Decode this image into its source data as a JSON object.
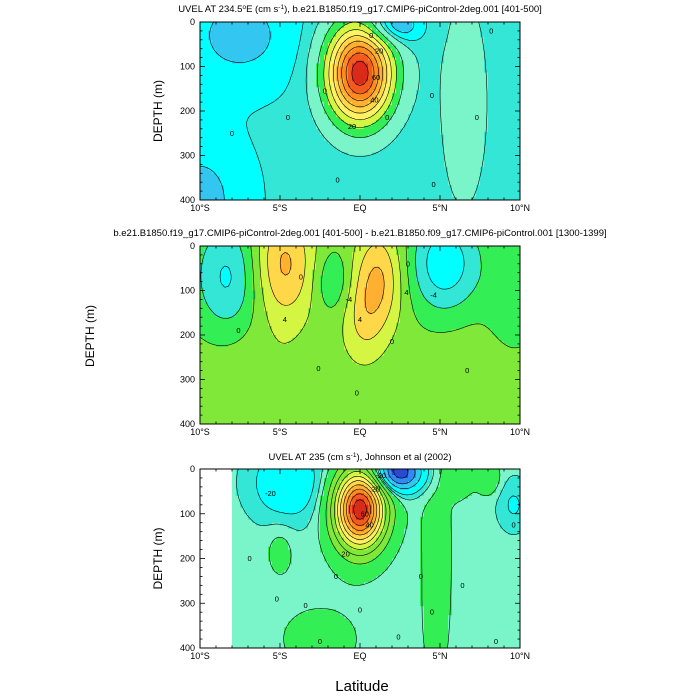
{
  "figure": {
    "shared_xlabel": "Latitude",
    "middle_ylabel": "DEPTH (m)"
  },
  "colors": {
    "levels": [
      "#2a4bd1",
      "#2f8af2",
      "#33c6f0",
      "#00ffff",
      "#33e6d6",
      "#7af5c9",
      "#33ee55",
      "#7fe838",
      "#d4f542",
      "#fff266",
      "#ffd84a",
      "#ffb030",
      "#ff8a1f",
      "#f25a1f",
      "#d92a1a"
    ],
    "contour_line": "#000000",
    "missing": "#ffffff"
  },
  "chart_data": [
    {
      "type": "heatmap",
      "name": "panel-top",
      "title": "UVEL AT 234.5°E (cm s⁻¹), b.e21.B1850.f19_g17.CMIP6-piControl-2deg.001 [401-500]",
      "title_parts": {
        "pre": "UVEL AT 234.5",
        "sup": "o",
        "mid": "E (cm s",
        "sup2": "-1",
        "post": "), b.e21.B1850.f19_g17.CMIP6-piControl-2deg.001 [401-500]"
      },
      "ylabel": "DEPTH (m)",
      "xlabel": "",
      "xlim": [
        -10,
        10
      ],
      "ylim": [
        400,
        0
      ],
      "x_ticks": [
        -10,
        -5,
        0,
        5,
        10
      ],
      "x_tick_labels": [
        "10°S",
        "5°S",
        "EQ",
        "5°N",
        "10°N"
      ],
      "y_ticks": [
        0,
        100,
        200,
        300,
        400
      ],
      "y_tick_labels": [
        "0",
        "100",
        "200",
        "300",
        "400"
      ],
      "field": {
        "base": -4,
        "blobs": [
          {
            "x": 0,
            "y": 115,
            "sx": 1.4,
            "sy": 75,
            "a": 90
          },
          {
            "x": 1.9,
            "y": 10,
            "sx": 1.2,
            "sy": 30,
            "a": -18
          },
          {
            "x": -7.5,
            "y": 30,
            "sx": 2.5,
            "sy": 80,
            "a": -8
          },
          {
            "x": 6.5,
            "y": 180,
            "sx": 1.6,
            "sy": 260,
            "a": 6
          },
          {
            "x": -10,
            "y": 400,
            "sx": 2,
            "sy": 100,
            "a": -8
          }
        ]
      },
      "levels": [
        -20,
        -15,
        -10,
        -5,
        0,
        10,
        20,
        30,
        40,
        50,
        60,
        70,
        80
      ],
      "contour_labels": [
        {
          "text": "0",
          "x": 0.7,
          "y": 30
        },
        {
          "text": "20",
          "x": 1.2,
          "y": 65
        },
        {
          "text": "40",
          "x": 0.9,
          "y": 175
        },
        {
          "text": "60",
          "x": 1.0,
          "y": 125
        },
        {
          "text": "20",
          "x": -0.5,
          "y": 235
        },
        {
          "text": "0",
          "x": -2.2,
          "y": 155
        },
        {
          "text": "0",
          "x": -4.5,
          "y": 215
        },
        {
          "text": "0",
          "x": -8.0,
          "y": 250
        },
        {
          "text": "0",
          "x": 4.5,
          "y": 165
        },
        {
          "text": "0",
          "x": 7.3,
          "y": 215
        },
        {
          "text": "0",
          "x": 8.2,
          "y": 20
        },
        {
          "text": "0",
          "x": 1.7,
          "y": 215
        },
        {
          "text": "0",
          "x": 4.6,
          "y": 365
        },
        {
          "text": "0",
          "x": -1.4,
          "y": 355
        }
      ]
    },
    {
      "type": "heatmap",
      "name": "panel-middle",
      "title": "b.e21.B1850.f19_g17.CMIP6-piControl-2deg.001 [401-500] - b.e21.B1850.f09_g17.CMIP6-piControl.001 [1300-1399]",
      "ylabel": "",
      "xlabel": "",
      "xlim": [
        -10,
        10
      ],
      "ylim": [
        400,
        0
      ],
      "x_ticks": [
        -10,
        -5,
        0,
        5,
        10
      ],
      "x_tick_labels": [
        "10°S",
        "5°S",
        "EQ",
        "5°N",
        "10°N"
      ],
      "y_ticks": [
        0,
        100,
        200,
        300,
        400
      ],
      "y_tick_labels": [
        "0",
        "100",
        "200",
        "300",
        "400"
      ],
      "field": {
        "base": 0.5,
        "blobs": [
          {
            "x": -4.8,
            "y": 40,
            "sx": 1.4,
            "sy": 90,
            "a": 6
          },
          {
            "x": -8.2,
            "y": 70,
            "sx": 1.5,
            "sy": 90,
            "a": -5
          },
          {
            "x": -1.7,
            "y": 80,
            "sx": 0.8,
            "sy": 50,
            "a": -2.8
          },
          {
            "x": 1.2,
            "y": 70,
            "sx": 1.1,
            "sy": 80,
            "a": 5.5
          },
          {
            "x": 0.2,
            "y": 170,
            "sx": 1.0,
            "sy": 70,
            "a": 3
          },
          {
            "x": 5.3,
            "y": 40,
            "sx": 1.6,
            "sy": 80,
            "a": -6
          },
          {
            "x": -6,
            "y": 350,
            "sx": 3,
            "sy": 120,
            "a": 1.5
          },
          {
            "x": 7.5,
            "y": 400,
            "sx": 3,
            "sy": 150,
            "a": 1.5
          },
          {
            "x": 9.5,
            "y": 120,
            "sx": 1.2,
            "sy": 100,
            "a": -2
          }
        ]
      },
      "levels": [
        -8,
        -6,
        -4,
        -2,
        0,
        2,
        4,
        6,
        8,
        10
      ],
      "contour_labels": [
        {
          "text": "0",
          "x": -3.7,
          "y": 70
        },
        {
          "text": "-4",
          "x": -0.7,
          "y": 120
        },
        {
          "text": "4",
          "x": -4.7,
          "y": 165
        },
        {
          "text": "0",
          "x": -7.6,
          "y": 190
        },
        {
          "text": "0",
          "x": -2.6,
          "y": 275
        },
        {
          "text": "0",
          "x": -0.2,
          "y": 330
        },
        {
          "text": "4",
          "x": 0.0,
          "y": 165
        },
        {
          "text": "4",
          "x": 2.9,
          "y": 105
        },
        {
          "text": "0",
          "x": 3.0,
          "y": 40
        },
        {
          "text": "0",
          "x": 2.0,
          "y": 215
        },
        {
          "text": "-4",
          "x": 4.6,
          "y": 110
        },
        {
          "text": "0",
          "x": 6.7,
          "y": 280
        }
      ]
    },
    {
      "type": "heatmap",
      "name": "panel-bottom",
      "title": "UVEL AT 235 (cm s⁻¹), Johnson et al (2002)",
      "title_parts": {
        "pre": "UVEL AT 235 (cm s",
        "sup": "-1",
        "post": "), Johnson et al (2002)"
      },
      "ylabel": "DEPTH (m)",
      "xlabel": "Latitude",
      "xlim": [
        -10,
        10
      ],
      "ylim": [
        400,
        0
      ],
      "x_ticks": [
        -10,
        -5,
        0,
        5,
        10
      ],
      "x_tick_labels": [
        "10°S",
        "5°S",
        "EQ",
        "5°N",
        "10°N"
      ],
      "y_ticks": [
        0,
        100,
        200,
        300,
        400
      ],
      "y_tick_labels": [
        "0",
        "100",
        "200",
        "300",
        "400"
      ],
      "data_xlim": [
        -8,
        10
      ],
      "field": {
        "base": -3,
        "blobs": [
          {
            "x": 0,
            "y": 90,
            "sx": 1.1,
            "sy": 60,
            "a": 100
          },
          {
            "x": 2.4,
            "y": 8,
            "sx": 1.1,
            "sy": 30,
            "a": -45
          },
          {
            "x": -4.5,
            "y": 30,
            "sx": 1.6,
            "sy": 60,
            "a": -15
          },
          {
            "x": 6.2,
            "y": 25,
            "sx": 0.6,
            "sy": 25,
            "a": 10
          },
          {
            "x": 8.0,
            "y": 20,
            "sx": 0.5,
            "sy": 25,
            "a": 12
          },
          {
            "x": 4.8,
            "y": 180,
            "sx": 0.9,
            "sy": 300,
            "a": 5
          },
          {
            "x": -5.0,
            "y": 180,
            "sx": 0.6,
            "sy": 40,
            "a": 6
          },
          {
            "x": -2.5,
            "y": 380,
            "sx": 3,
            "sy": 90,
            "a": 4
          },
          {
            "x": 9.6,
            "y": 80,
            "sx": 0.7,
            "sy": 40,
            "a": -8
          }
        ]
      },
      "levels": [
        -40,
        -30,
        -20,
        -10,
        -5,
        0,
        10,
        20,
        30,
        40,
        50,
        60,
        70,
        80,
        90
      ],
      "contour_labels": [
        {
          "text": "20",
          "x": 1.0,
          "y": 45
        },
        {
          "text": "40",
          "x": 0.6,
          "y": 125
        },
        {
          "text": "60",
          "x": 0.3,
          "y": 100
        },
        {
          "text": "20",
          "x": -0.9,
          "y": 190
        },
        {
          "text": "-20",
          "x": 1.3,
          "y": 15
        },
        {
          "text": "-20",
          "x": -5.6,
          "y": 55
        },
        {
          "text": "0",
          "x": -6.9,
          "y": 200
        },
        {
          "text": "0",
          "x": -5.2,
          "y": 290
        },
        {
          "text": "0",
          "x": -1.5,
          "y": 240
        },
        {
          "text": "0",
          "x": 3.8,
          "y": 240
        },
        {
          "text": "0",
          "x": 6.4,
          "y": 260
        },
        {
          "text": "0",
          "x": 9.6,
          "y": 125
        },
        {
          "text": "0",
          "x": 4.5,
          "y": 320
        },
        {
          "text": "0",
          "x": 2.4,
          "y": 375
        },
        {
          "text": "0",
          "x": 8.5,
          "y": 385
        },
        {
          "text": "0",
          "x": -2.5,
          "y": 385
        },
        {
          "text": "0",
          "x": -3.4,
          "y": 305
        },
        {
          "text": "0",
          "x": 0,
          "y": 315
        }
      ]
    }
  ]
}
